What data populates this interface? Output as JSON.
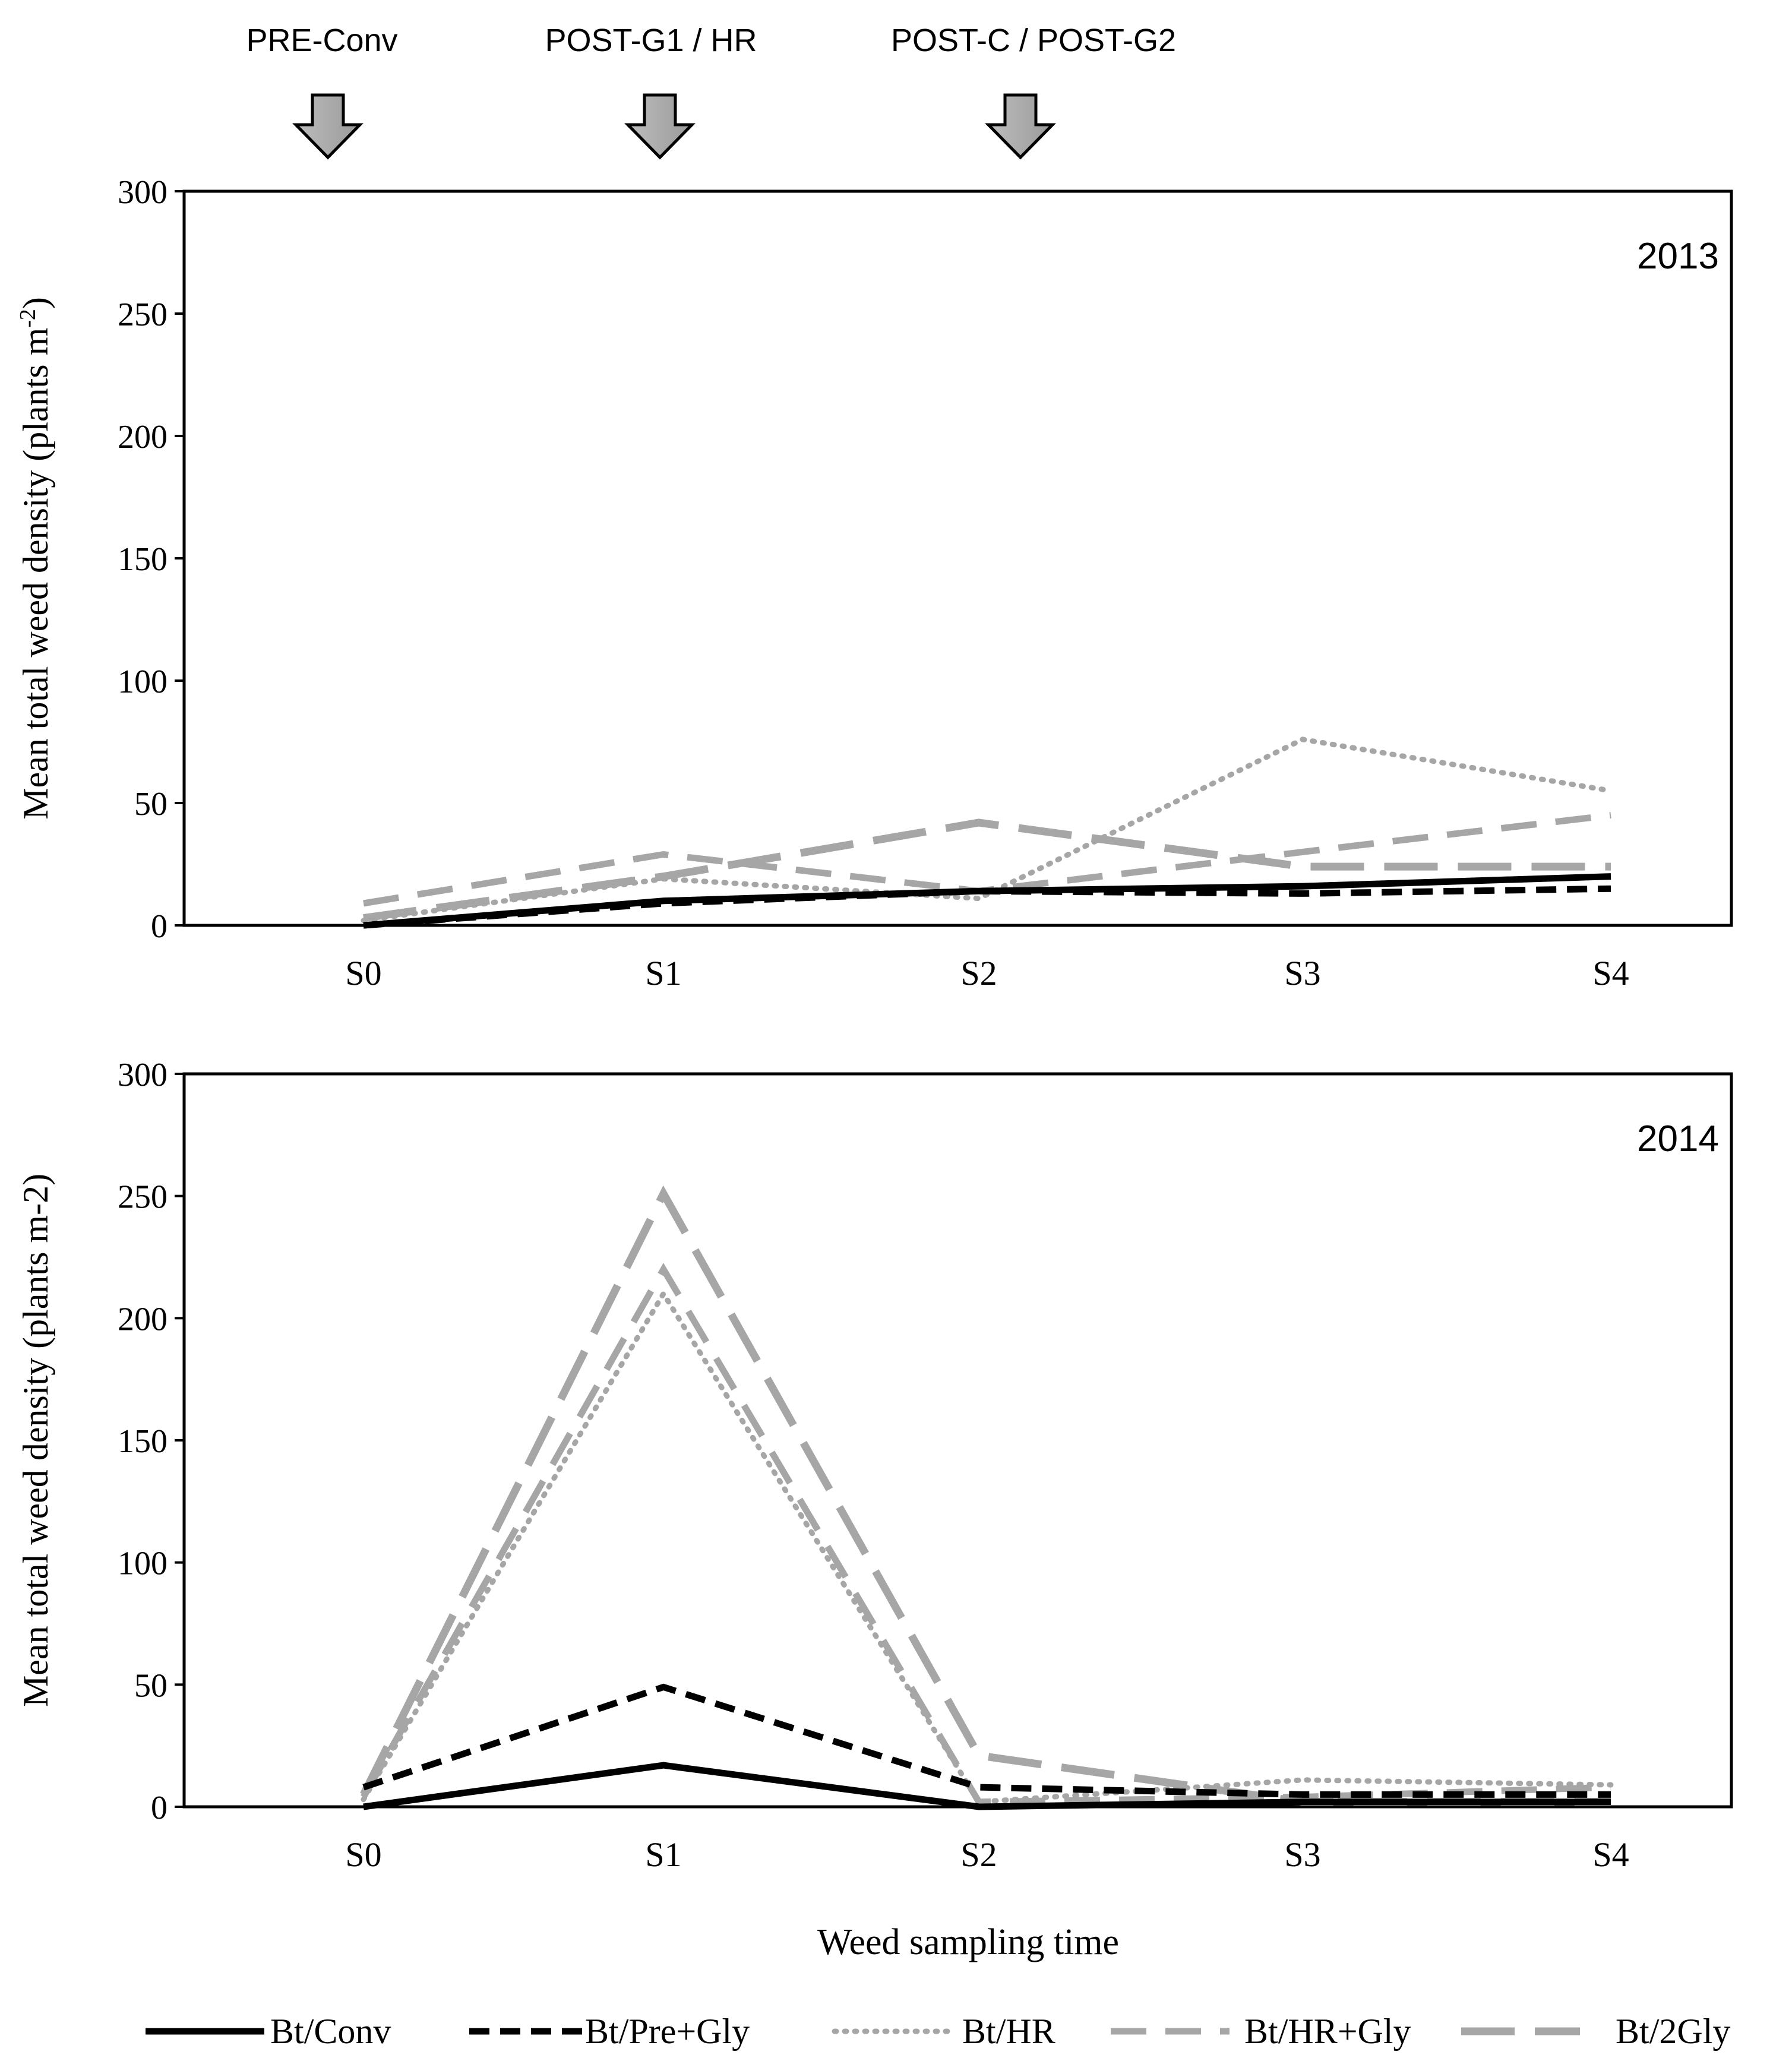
{
  "annotations": [
    {
      "label": "PRE-Conv",
      "at": "S0"
    },
    {
      "label": "POST-G1 / HR",
      "at": "S1"
    },
    {
      "label": "POST-C / POST-G2",
      "at": "S2"
    }
  ],
  "xlabel": "Weed sampling time",
  "legend": [
    {
      "name": "Bt/Conv",
      "color": "#000000",
      "style": "solid"
    },
    {
      "name": "Bt/Pre+Gly",
      "color": "#000000",
      "style": "dash"
    },
    {
      "name": "Bt/HR",
      "color": "#a6a6a6",
      "style": "dot"
    },
    {
      "name": "Bt/HR+Gly",
      "color": "#a6a6a6",
      "style": "dash"
    },
    {
      "name": "Bt/2Gly",
      "color": "#a6a6a6",
      "style": "longdash"
    }
  ],
  "chart_data": [
    {
      "type": "line",
      "year_label": "2013",
      "ylabel_main": "Mean total weed density (plants m",
      "ylabel_sup": "-2",
      "ylabel_end": ")",
      "xlabel": "",
      "categories": [
        "S0",
        "S1",
        "S2",
        "S3",
        "S4"
      ],
      "ylim": [
        0,
        300
      ],
      "yticks": [
        0,
        50,
        100,
        150,
        200,
        250,
        300
      ],
      "series": [
        {
          "name": "Bt/Conv",
          "values": [
            0,
            10,
            14,
            16,
            20
          ]
        },
        {
          "name": "Bt/Pre+Gly",
          "values": [
            0,
            9,
            14,
            13,
            15
          ]
        },
        {
          "name": "Bt/HR",
          "values": [
            2,
            19,
            11,
            76,
            55
          ]
        },
        {
          "name": "Bt/HR+Gly",
          "values": [
            9,
            29,
            14,
            30,
            45
          ]
        },
        {
          "name": "Bt/2Gly",
          "values": [
            3,
            20,
            42,
            24,
            24
          ]
        }
      ]
    },
    {
      "type": "line",
      "year_label": "2014",
      "ylabel_main": "Mean total weed density (plants m-2)",
      "ylabel_sup": "",
      "ylabel_end": "",
      "xlabel": "Weed sampling time",
      "categories": [
        "S0",
        "S1",
        "S2",
        "S3",
        "S4"
      ],
      "ylim": [
        0,
        300
      ],
      "yticks": [
        0,
        50,
        100,
        150,
        200,
        250,
        300
      ],
      "series": [
        {
          "name": "Bt/Conv",
          "values": [
            0,
            17,
            0,
            2,
            2
          ]
        },
        {
          "name": "Bt/Pre+Gly",
          "values": [
            8,
            49,
            8,
            5,
            5
          ]
        },
        {
          "name": "Bt/HR",
          "values": [
            3,
            210,
            2,
            11,
            9
          ]
        },
        {
          "name": "Bt/HR+Gly",
          "values": [
            4,
            220,
            2,
            4,
            8
          ]
        },
        {
          "name": "Bt/2Gly",
          "values": [
            5,
            251,
            21,
            2,
            2
          ]
        }
      ]
    }
  ]
}
